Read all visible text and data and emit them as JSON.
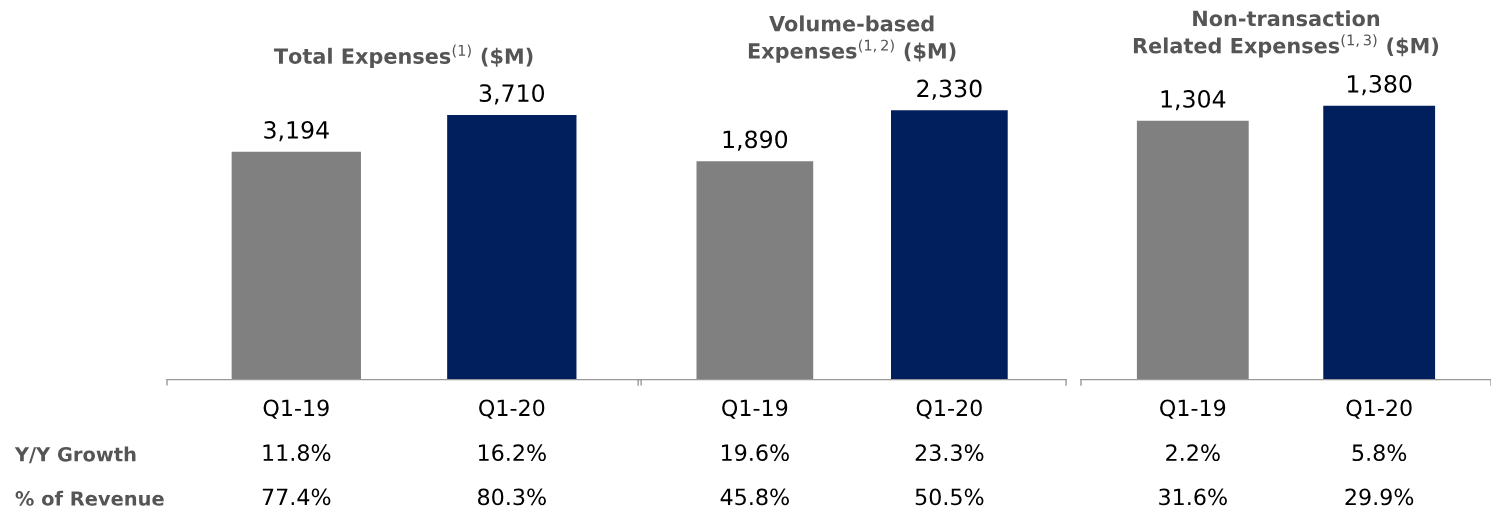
{
  "chart_data": [
    {
      "type": "bar",
      "title": "Total Expenses$^{(1)}$ ($M)",
      "categories": [
        "Q1-19",
        "Q1-20"
      ],
      "values": [
        3194,
        3710
      ],
      "colors": [
        "#808080",
        "#001f5c"
      ],
      "value_labels": [
        "3,194",
        "3,710"
      ],
      "annotations": [
        "Y/Y Growth",
        "11.8%",
        "16.2%",
        "% of Revenue",
        "77.4%",
        "80.3%"
      ]
    },
    {
      "type": "bar",
      "title": "Volume-based\nExpenses$^{(1,2)}$ ($M)",
      "categories": [
        "Q1-19",
        "Q1-20"
      ],
      "values": [
        1890,
        2330
      ],
      "colors": [
        "#808080",
        "#001f5c"
      ],
      "value_labels": [
        "1,890",
        "2,330"
      ],
      "annotations": [
        "19.6%",
        "23.3%",
        "45.8%",
        "50.5%"
      ]
    },
    {
      "type": "bar",
      "title": "Non-transaction\nRelated Expenses$^{(1,3)}$ ($M)",
      "categories": [
        "Q1-19",
        "Q1-20"
      ],
      "values": [
        1304,
        1380
      ],
      "colors": [
        "#808080",
        "#001f5c"
      ],
      "value_labels": [
        "1,304",
        "1,380"
      ],
      "annotations": [
        "2.2%",
        "5.8%",
        "31.6%",
        "29.9%"
      ]
    }
  ]
}
